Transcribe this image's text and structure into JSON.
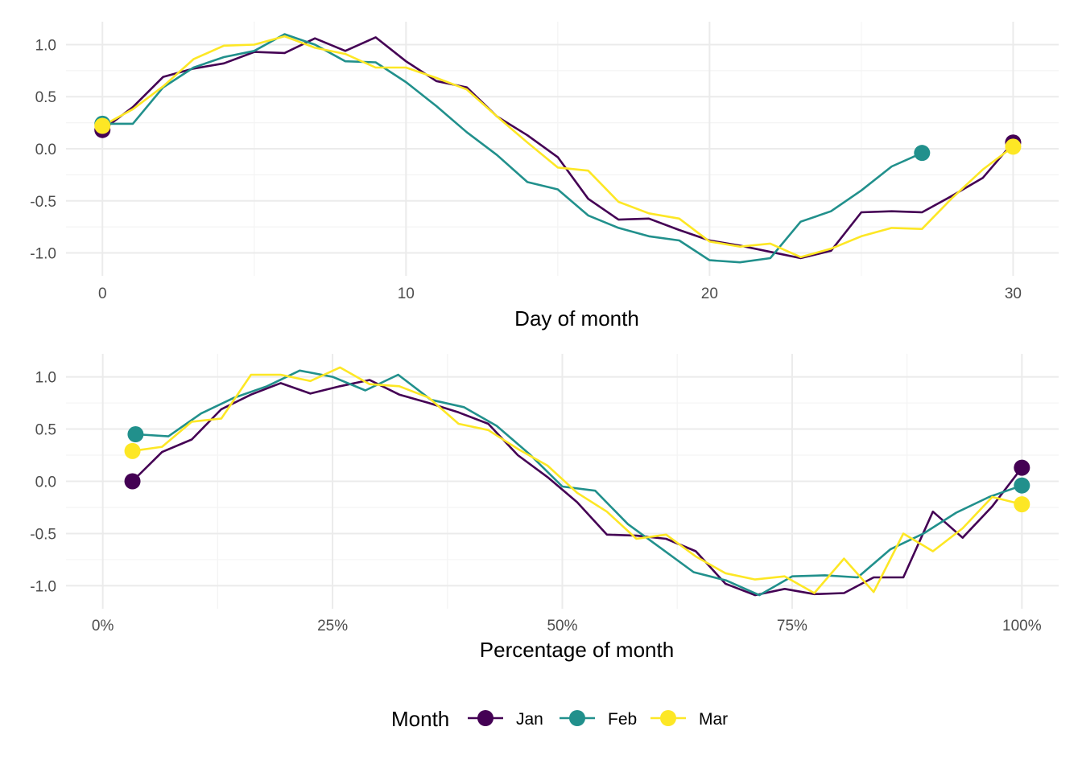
{
  "chart_data": [
    {
      "type": "line",
      "xlabel": "Day of month",
      "ylabel": "",
      "xlim": [
        -1.2,
        31.5
      ],
      "ylim": [
        -1.22,
        1.22
      ],
      "x_ticks": [
        0,
        10,
        20,
        30
      ],
      "x_tick_labels": [
        "0",
        "10",
        "20",
        "30"
      ],
      "y_ticks": [
        1.0,
        0.5,
        0.0,
        -0.5,
        -1.0
      ],
      "y_tick_labels": [
        "1.0",
        "0.5",
        "0.0",
        "-0.5",
        "-1.0"
      ],
      "grid": true,
      "series": [
        {
          "name": "Jan",
          "color": "#440154",
          "x": [
            0,
            1,
            2,
            3,
            4,
            5,
            6,
            7,
            8,
            9,
            10,
            11,
            12,
            13,
            14,
            15,
            16,
            17,
            18,
            19,
            20,
            21,
            22,
            23,
            24,
            25,
            26,
            27,
            28,
            29,
            30
          ],
          "y": [
            0.18,
            0.4,
            0.69,
            0.77,
            0.82,
            0.93,
            0.92,
            1.06,
            0.94,
            1.07,
            0.84,
            0.65,
            0.59,
            0.31,
            0.13,
            -0.08,
            -0.48,
            -0.68,
            -0.67,
            -0.78,
            -0.88,
            -0.93,
            -0.99,
            -1.05,
            -0.98,
            -0.61,
            -0.6,
            -0.61,
            -0.45,
            -0.28,
            0.06
          ]
        },
        {
          "name": "Feb",
          "color": "#21908C",
          "x": [
            0,
            1,
            2,
            3,
            4,
            5,
            6,
            7,
            8,
            9,
            10,
            11,
            12,
            13,
            14,
            15,
            16,
            17,
            18,
            19,
            20,
            21,
            22,
            23,
            24,
            25,
            26,
            27
          ],
          "y": [
            0.24,
            0.24,
            0.59,
            0.78,
            0.88,
            0.94,
            1.1,
            1.0,
            0.84,
            0.83,
            0.64,
            0.41,
            0.16,
            -0.06,
            -0.32,
            -0.39,
            -0.64,
            -0.76,
            -0.84,
            -0.88,
            -1.07,
            -1.09,
            -1.05,
            -0.7,
            -0.6,
            -0.4,
            -0.17,
            -0.04
          ]
        },
        {
          "name": "Mar",
          "color": "#FDE725",
          "x": [
            0,
            1,
            2,
            3,
            4,
            5,
            6,
            7,
            8,
            9,
            10,
            11,
            12,
            13,
            14,
            15,
            16,
            17,
            18,
            19,
            20,
            21,
            22,
            23,
            24,
            25,
            26,
            27,
            28,
            29,
            30
          ],
          "y": [
            0.22,
            0.38,
            0.6,
            0.86,
            0.99,
            1.0,
            1.08,
            0.97,
            0.91,
            0.78,
            0.78,
            0.68,
            0.57,
            0.31,
            0.06,
            -0.18,
            -0.21,
            -0.51,
            -0.62,
            -0.67,
            -0.89,
            -0.94,
            -0.91,
            -1.04,
            -0.96,
            -0.84,
            -0.76,
            -0.77,
            -0.47,
            -0.2,
            0.02
          ]
        }
      ]
    },
    {
      "type": "line",
      "xlabel": "Percentage of month",
      "ylabel": "",
      "xlim": [
        -0.04,
        1.04
      ],
      "ylim": [
        -1.22,
        1.22
      ],
      "x_ticks": [
        0,
        0.25,
        0.5,
        0.75,
        1.0
      ],
      "x_tick_labels": [
        "0%",
        "25%",
        "50%",
        "75%",
        "100%"
      ],
      "y_ticks": [
        1.0,
        0.5,
        0.0,
        -0.5,
        -1.0
      ],
      "y_tick_labels": [
        "1.0",
        "0.5",
        "0.0",
        "-0.5",
        "-1.0"
      ],
      "grid": true,
      "series": [
        {
          "name": "Jan",
          "color": "#440154",
          "x": [
            0.0323,
            0.0645,
            0.0968,
            0.129,
            0.1613,
            0.1935,
            0.2258,
            0.2581,
            0.2903,
            0.3226,
            0.3548,
            0.3871,
            0.4194,
            0.4516,
            0.4839,
            0.5161,
            0.5484,
            0.5806,
            0.6129,
            0.6452,
            0.6774,
            0.7097,
            0.7419,
            0.7742,
            0.8065,
            0.8387,
            0.871,
            0.9032,
            0.9355,
            0.9677,
            1.0
          ],
          "y": [
            0.0,
            0.28,
            0.4,
            0.69,
            0.83,
            0.94,
            0.84,
            0.91,
            0.97,
            0.83,
            0.75,
            0.66,
            0.55,
            0.25,
            0.04,
            -0.2,
            -0.51,
            -0.52,
            -0.55,
            -0.67,
            -0.98,
            -1.09,
            -1.03,
            -1.08,
            -1.07,
            -0.92,
            -0.92,
            -0.29,
            -0.54,
            -0.24,
            0.13
          ]
        },
        {
          "name": "Feb",
          "color": "#21908C",
          "x": [
            0.0357,
            0.0714,
            0.1071,
            0.1429,
            0.1786,
            0.2143,
            0.25,
            0.2857,
            0.3214,
            0.3571,
            0.3929,
            0.4286,
            0.4643,
            0.5,
            0.5357,
            0.5714,
            0.6071,
            0.6429,
            0.6786,
            0.7143,
            0.75,
            0.7857,
            0.8214,
            0.8571,
            0.8929,
            0.9286,
            0.9643,
            1.0
          ],
          "y": [
            0.45,
            0.43,
            0.65,
            0.8,
            0.91,
            1.06,
            1.0,
            0.87,
            1.02,
            0.78,
            0.71,
            0.53,
            0.26,
            -0.05,
            -0.09,
            -0.41,
            -0.64,
            -0.87,
            -0.95,
            -1.09,
            -0.91,
            -0.9,
            -0.92,
            -0.65,
            -0.5,
            -0.3,
            -0.15,
            -0.04
          ]
        },
        {
          "name": "Mar",
          "color": "#FDE725",
          "x": [
            0.0323,
            0.0645,
            0.0968,
            0.129,
            0.1613,
            0.1935,
            0.2258,
            0.2581,
            0.2903,
            0.3226,
            0.3548,
            0.3871,
            0.4194,
            0.4516,
            0.4839,
            0.5161,
            0.5484,
            0.5806,
            0.6129,
            0.6452,
            0.6774,
            0.7097,
            0.7419,
            0.7742,
            0.8065,
            0.8387,
            0.871,
            0.9032,
            0.9355,
            0.9677,
            1.0
          ],
          "y": [
            0.29,
            0.33,
            0.57,
            0.6,
            1.02,
            1.02,
            0.96,
            1.09,
            0.93,
            0.91,
            0.8,
            0.55,
            0.49,
            0.31,
            0.15,
            -0.11,
            -0.29,
            -0.55,
            -0.51,
            -0.72,
            -0.88,
            -0.94,
            -0.91,
            -1.07,
            -0.74,
            -1.06,
            -0.5,
            -0.67,
            -0.45,
            -0.15,
            -0.22
          ]
        }
      ]
    }
  ],
  "legend": {
    "title": "Month",
    "position": "bottom",
    "entries": [
      {
        "label": "Jan",
        "color": "#440154"
      },
      {
        "label": "Feb",
        "color": "#21908C"
      },
      {
        "label": "Mar",
        "color": "#FDE725"
      }
    ]
  }
}
